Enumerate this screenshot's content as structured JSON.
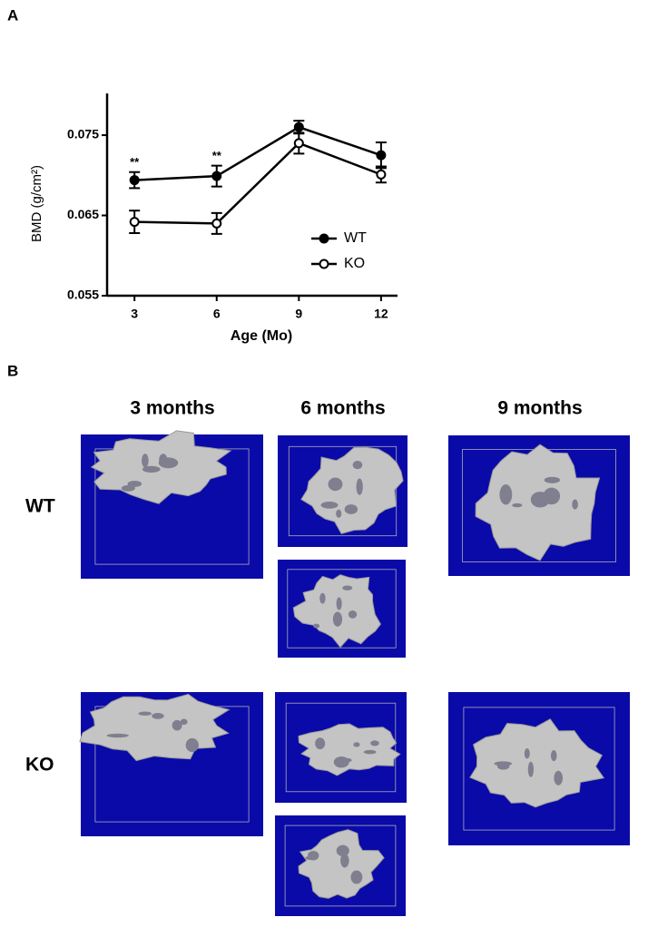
{
  "chart_data": {
    "type": "line",
    "ylabel": "BMD (g/cm²)",
    "xlabel": "Age (Mo)",
    "x": [
      3,
      6,
      9,
      12
    ],
    "series": [
      {
        "name": "WT",
        "color": "#000000",
        "marker": "filled",
        "values": [
          0.0694,
          0.0699,
          0.076,
          0.0725
        ],
        "error": [
          0.001,
          0.0013,
          0.0008,
          0.0016
        ]
      },
      {
        "name": "KO",
        "color": "#000000",
        "marker": "open",
        "values": [
          0.0642,
          0.064,
          0.074,
          0.0701
        ],
        "error": [
          0.0014,
          0.0013,
          0.0013,
          0.001
        ]
      }
    ],
    "xlim": [
      2,
      12.6
    ],
    "ylim": [
      0.055,
      0.0802
    ],
    "xticks": [
      3,
      6,
      9,
      12
    ],
    "yticks": [
      0.055,
      0.065,
      0.075
    ],
    "annotations": [
      {
        "text": "**",
        "x": 3
      },
      {
        "text": "**",
        "x": 6
      }
    ],
    "legend": "lower right",
    "grid": false
  },
  "panel_labels": {
    "a": "A",
    "b": "B"
  },
  "panel_b": {
    "columns": [
      "3 months",
      "6 months",
      "9 months"
    ],
    "rows": [
      "WT",
      "KO"
    ]
  }
}
